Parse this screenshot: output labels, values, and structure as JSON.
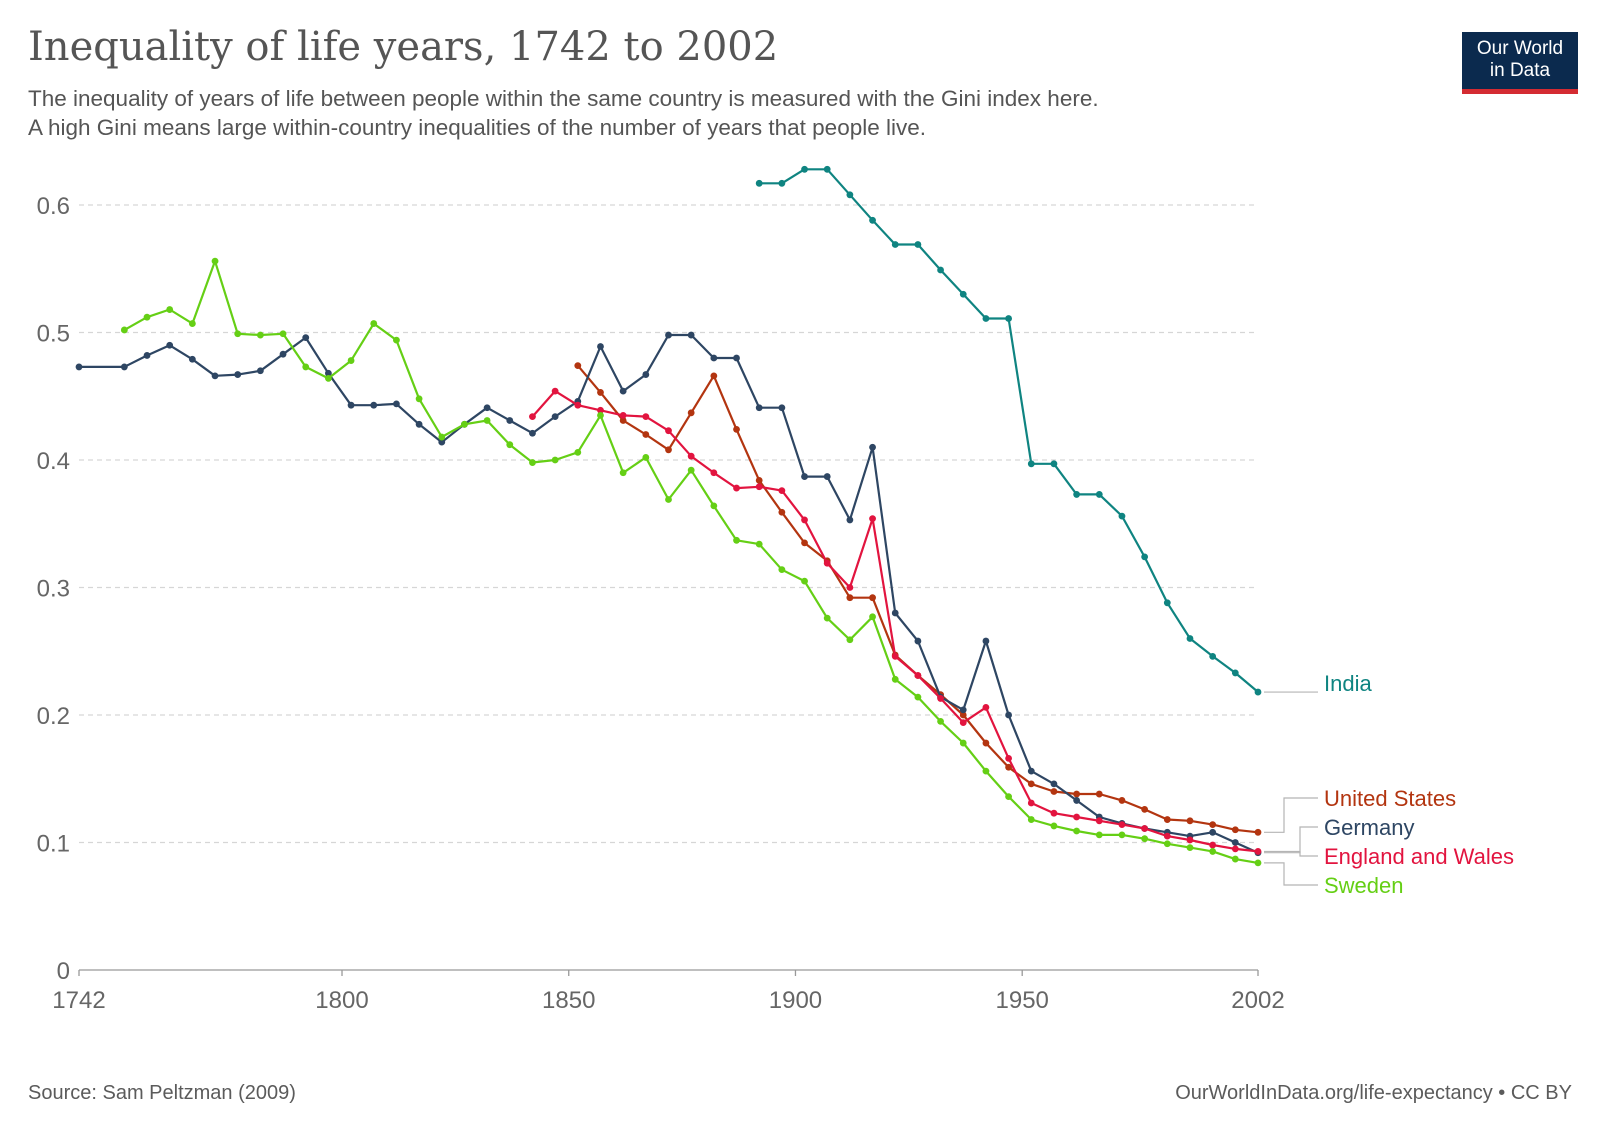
{
  "title": "Inequality of life years, 1742 to 2002",
  "subtitle": "The inequality of years of life between people within the same country is measured with the Gini index here.\n A high Gini means large within-country inequalities of the number of years that people live.",
  "logo": {
    "line1": "Our World",
    "line2": "in Data"
  },
  "footer": {
    "source": "Source: Sam Peltzman (2009)",
    "credit": "OurWorldInData.org/life-expectancy • CC BY"
  },
  "colors": {
    "India": "#0f8481",
    "United States": "#b33510",
    "Germany": "#2e4663",
    "England and Wales": "#e2143f",
    "Sweden": "#65cf15"
  },
  "chart_data": {
    "type": "line",
    "title": "Inequality of life years, 1742 to 2002",
    "xlim": [
      1742,
      2002
    ],
    "ylim": [
      0,
      0.6
    ],
    "x_ticks": [
      1742,
      1800,
      1850,
      1900,
      1950,
      2002
    ],
    "y_ticks": [
      0,
      0.1,
      0.2,
      0.3,
      0.4,
      0.5,
      0.6
    ],
    "y_tick_labels": [
      "0",
      "0.1",
      "0.2",
      "0.3",
      "0.4",
      "0.5",
      "0.6"
    ],
    "grid": "horizontal dashed",
    "legend": "right-end labels",
    "series": [
      {
        "name": "India",
        "color": "#0f8481",
        "points": [
          [
            1892,
            0.617
          ],
          [
            1897,
            0.617
          ],
          [
            1902,
            0.628
          ],
          [
            1907,
            0.628
          ],
          [
            1912,
            0.608
          ],
          [
            1917,
            0.588
          ],
          [
            1922,
            0.569
          ],
          [
            1927,
            0.569
          ],
          [
            1932,
            0.549
          ],
          [
            1937,
            0.53
          ],
          [
            1942,
            0.511
          ],
          [
            1947,
            0.511
          ],
          [
            1952,
            0.397
          ],
          [
            1957,
            0.397
          ],
          [
            1962,
            0.373
          ],
          [
            1967,
            0.373
          ],
          [
            1972,
            0.356
          ],
          [
            1977,
            0.324
          ],
          [
            1982,
            0.288
          ],
          [
            1987,
            0.26
          ],
          [
            1992,
            0.246
          ],
          [
            1997,
            0.233
          ],
          [
            2002,
            0.218
          ]
        ]
      },
      {
        "name": "United States",
        "color": "#b33510",
        "points": [
          [
            1852,
            0.474
          ],
          [
            1857,
            0.453
          ],
          [
            1862,
            0.431
          ],
          [
            1867,
            0.42
          ],
          [
            1872,
            0.408
          ],
          [
            1877,
            0.437
          ],
          [
            1882,
            0.466
          ],
          [
            1887,
            0.424
          ],
          [
            1892,
            0.384
          ],
          [
            1897,
            0.359
          ],
          [
            1902,
            0.335
          ],
          [
            1907,
            0.321
          ],
          [
            1912,
            0.292
          ],
          [
            1917,
            0.292
          ],
          [
            1922,
            0.247
          ],
          [
            1927,
            0.231
          ],
          [
            1932,
            0.216
          ],
          [
            1937,
            0.2
          ],
          [
            1942,
            0.178
          ],
          [
            1947,
            0.159
          ],
          [
            1952,
            0.146
          ],
          [
            1957,
            0.14
          ],
          [
            1962,
            0.138
          ],
          [
            1967,
            0.138
          ],
          [
            1972,
            0.133
          ],
          [
            1977,
            0.126
          ],
          [
            1982,
            0.118
          ],
          [
            1987,
            0.117
          ],
          [
            1992,
            0.114
          ],
          [
            1997,
            0.11
          ],
          [
            2002,
            0.108
          ]
        ]
      },
      {
        "name": "Germany",
        "color": "#2e4663",
        "points": [
          [
            1742,
            0.473
          ],
          [
            1752,
            0.473
          ],
          [
            1757,
            0.482
          ],
          [
            1762,
            0.49
          ],
          [
            1767,
            0.479
          ],
          [
            1772,
            0.466
          ],
          [
            1777,
            0.467
          ],
          [
            1782,
            0.47
          ],
          [
            1787,
            0.483
          ],
          [
            1792,
            0.496
          ],
          [
            1797,
            0.468
          ],
          [
            1802,
            0.443
          ],
          [
            1807,
            0.443
          ],
          [
            1812,
            0.444
          ],
          [
            1817,
            0.428
          ],
          [
            1822,
            0.414
          ],
          [
            1827,
            0.428
          ],
          [
            1832,
            0.441
          ],
          [
            1837,
            0.431
          ],
          [
            1842,
            0.421
          ],
          [
            1847,
            0.434
          ],
          [
            1852,
            0.446
          ],
          [
            1857,
            0.489
          ],
          [
            1862,
            0.454
          ],
          [
            1867,
            0.467
          ],
          [
            1872,
            0.498
          ],
          [
            1877,
            0.498
          ],
          [
            1882,
            0.48
          ],
          [
            1887,
            0.48
          ],
          [
            1892,
            0.441
          ],
          [
            1897,
            0.441
          ],
          [
            1902,
            0.387
          ],
          [
            1907,
            0.387
          ],
          [
            1912,
            0.353
          ],
          [
            1917,
            0.41
          ],
          [
            1922,
            0.28
          ],
          [
            1927,
            0.258
          ],
          [
            1932,
            0.214
          ],
          [
            1937,
            0.204
          ],
          [
            1942,
            0.258
          ],
          [
            1947,
            0.2
          ],
          [
            1952,
            0.156
          ],
          [
            1957,
            0.146
          ],
          [
            1962,
            0.133
          ],
          [
            1967,
            0.12
          ],
          [
            1972,
            0.115
          ],
          [
            1977,
            0.111
          ],
          [
            1982,
            0.108
          ],
          [
            1987,
            0.105
          ],
          [
            1992,
            0.108
          ],
          [
            1997,
            0.1
          ],
          [
            2002,
            0.092
          ]
        ]
      },
      {
        "name": "England and Wales",
        "color": "#e2143f",
        "points": [
          [
            1842,
            0.434
          ],
          [
            1847,
            0.454
          ],
          [
            1852,
            0.443
          ],
          [
            1857,
            0.439
          ],
          [
            1862,
            0.435
          ],
          [
            1867,
            0.434
          ],
          [
            1872,
            0.423
          ],
          [
            1877,
            0.403
          ],
          [
            1882,
            0.39
          ],
          [
            1887,
            0.378
          ],
          [
            1892,
            0.379
          ],
          [
            1897,
            0.376
          ],
          [
            1902,
            0.353
          ],
          [
            1907,
            0.319
          ],
          [
            1912,
            0.3
          ],
          [
            1917,
            0.354
          ],
          [
            1922,
            0.246
          ],
          [
            1927,
            0.231
          ],
          [
            1932,
            0.213
          ],
          [
            1937,
            0.194
          ],
          [
            1942,
            0.206
          ],
          [
            1947,
            0.166
          ],
          [
            1952,
            0.131
          ],
          [
            1957,
            0.123
          ],
          [
            1962,
            0.12
          ],
          [
            1967,
            0.117
          ],
          [
            1972,
            0.114
          ],
          [
            1977,
            0.111
          ],
          [
            1982,
            0.105
          ],
          [
            1987,
            0.102
          ],
          [
            1992,
            0.098
          ],
          [
            1997,
            0.095
          ],
          [
            2002,
            0.093
          ]
        ]
      },
      {
        "name": "Sweden",
        "color": "#65cf15",
        "points": [
          [
            1752,
            0.502
          ],
          [
            1757,
            0.512
          ],
          [
            1762,
            0.518
          ],
          [
            1767,
            0.507
          ],
          [
            1772,
            0.556
          ],
          [
            1777,
            0.499
          ],
          [
            1782,
            0.498
          ],
          [
            1787,
            0.499
          ],
          [
            1792,
            0.473
          ],
          [
            1797,
            0.464
          ],
          [
            1802,
            0.478
          ],
          [
            1807,
            0.507
          ],
          [
            1812,
            0.494
          ],
          [
            1817,
            0.448
          ],
          [
            1822,
            0.418
          ],
          [
            1827,
            0.428
          ],
          [
            1832,
            0.431
          ],
          [
            1837,
            0.412
          ],
          [
            1842,
            0.398
          ],
          [
            1847,
            0.4
          ],
          [
            1852,
            0.406
          ],
          [
            1857,
            0.435
          ],
          [
            1862,
            0.39
          ],
          [
            1867,
            0.402
          ],
          [
            1872,
            0.369
          ],
          [
            1877,
            0.392
          ],
          [
            1882,
            0.364
          ],
          [
            1887,
            0.337
          ],
          [
            1892,
            0.334
          ],
          [
            1897,
            0.314
          ],
          [
            1902,
            0.305
          ],
          [
            1907,
            0.276
          ],
          [
            1912,
            0.259
          ],
          [
            1917,
            0.277
          ],
          [
            1922,
            0.228
          ],
          [
            1927,
            0.214
          ],
          [
            1932,
            0.195
          ],
          [
            1937,
            0.178
          ],
          [
            1942,
            0.156
          ],
          [
            1947,
            0.136
          ],
          [
            1952,
            0.118
          ],
          [
            1957,
            0.113
          ],
          [
            1962,
            0.109
          ],
          [
            1967,
            0.106
          ],
          [
            1972,
            0.106
          ],
          [
            1977,
            0.103
          ],
          [
            1982,
            0.099
          ],
          [
            1987,
            0.096
          ],
          [
            1992,
            0.093
          ],
          [
            1997,
            0.087
          ],
          [
            2002,
            0.084
          ]
        ]
      }
    ]
  }
}
